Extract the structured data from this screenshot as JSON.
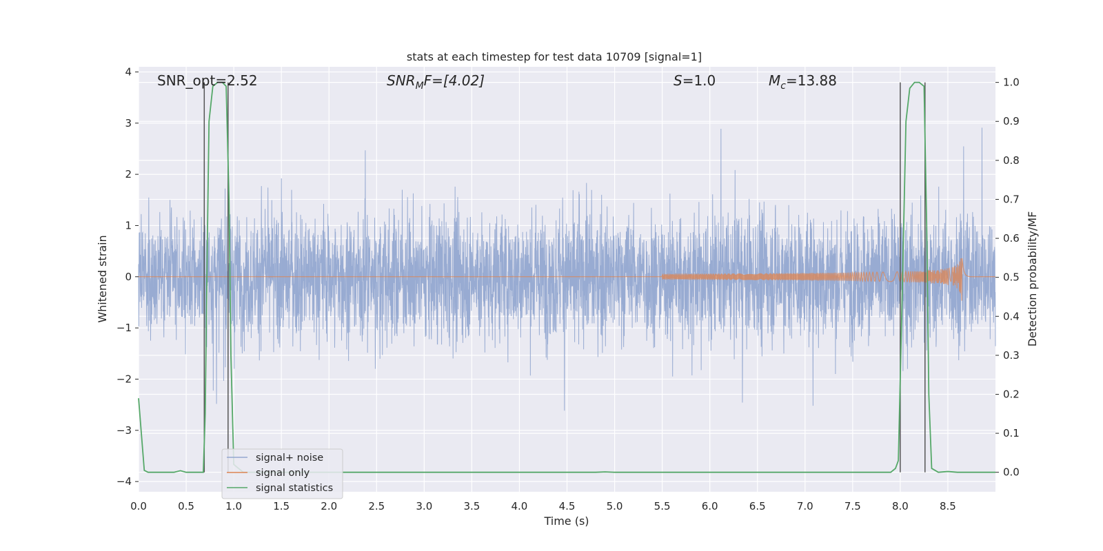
{
  "chart_data": {
    "type": "line",
    "title": "stats at each timestep for test data 10709 [signal=1]",
    "xlabel": "Time (s)",
    "ylabel_left": "Whitened strain",
    "ylabel_right": "Detection probability/MF",
    "xlim": [
      0.0,
      9.0
    ],
    "ylim_left": [
      -4.2,
      4.1
    ],
    "ylim_right": [
      -0.05,
      1.04
    ],
    "x_ticks": [
      "0.0",
      "0.5",
      "1.0",
      "1.5",
      "2.0",
      "2.5",
      "3.0",
      "3.5",
      "4.0",
      "4.5",
      "5.0",
      "5.5",
      "6.0",
      "6.5",
      "7.0",
      "7.5",
      "8.0",
      "8.5"
    ],
    "y_left_ticks": [
      "−4",
      "−3",
      "−2",
      "−1",
      "0",
      "1",
      "2",
      "3",
      "4"
    ],
    "y_right_ticks": [
      "0.0",
      "0.1",
      "0.2",
      "0.3",
      "0.4",
      "0.5",
      "0.6",
      "0.7",
      "0.8",
      "0.9",
      "1.0"
    ],
    "grid": true,
    "legend_position": "lower-left",
    "annotations": {
      "snr_opt": "SNR_opt=2.52",
      "snr_mf_base": "SNR",
      "snr_mf_sub": "M",
      "snr_mf_rest": "F=[4.02]",
      "s_base": "S",
      "s_rest": "=1.0",
      "mc_base": "M",
      "mc_sub": "c",
      "mc_rest": "=13.88"
    },
    "series": [
      {
        "name": "signal+ noise",
        "color": "#94a8d0",
        "axis": "left",
        "description_sampled": true,
        "envelope_amplitude": 1.6,
        "peak_amplitude": 3.9
      },
      {
        "name": "signal only",
        "color": "#dd8452",
        "axis": "left",
        "chirp_start": 5.5,
        "chirp_peak_time": 8.65,
        "chirp_peak_amplitude": 0.6
      },
      {
        "name": "signal statistics",
        "color": "#55a868",
        "axis": "right",
        "x": [
          0.0,
          0.06,
          0.1,
          0.2,
          0.3,
          0.37,
          0.44,
          0.5,
          0.6,
          0.68,
          0.7,
          0.72,
          0.74,
          0.78,
          0.83,
          0.88,
          0.92,
          0.95,
          0.97,
          1.0,
          1.1,
          2.0,
          3.0,
          4.0,
          4.8,
          4.9,
          5.0,
          6.0,
          7.0,
          7.9,
          7.95,
          7.98,
          8.02,
          8.06,
          8.1,
          8.15,
          8.2,
          8.25,
          8.28,
          8.3,
          8.33,
          8.4,
          8.5,
          8.6,
          9.0
        ],
        "y": [
          0.19,
          0.005,
          0.0,
          0.0,
          0.0,
          0.0,
          0.004,
          0.0,
          0.0,
          0.0,
          0.15,
          0.55,
          0.9,
          0.99,
          1.0,
          1.0,
          0.99,
          0.7,
          0.3,
          0.02,
          0.0,
          0.0,
          0.0,
          0.0,
          0.0,
          0.001,
          0.0,
          0.0,
          0.0,
          0.0,
          0.01,
          0.03,
          0.45,
          0.9,
          0.985,
          1.0,
          1.0,
          0.99,
          0.6,
          0.2,
          0.01,
          0.0,
          0.002,
          0.0,
          0.0
        ]
      }
    ],
    "vertical_markers": [
      0.69,
      0.94,
      8.0,
      8.26
    ]
  }
}
